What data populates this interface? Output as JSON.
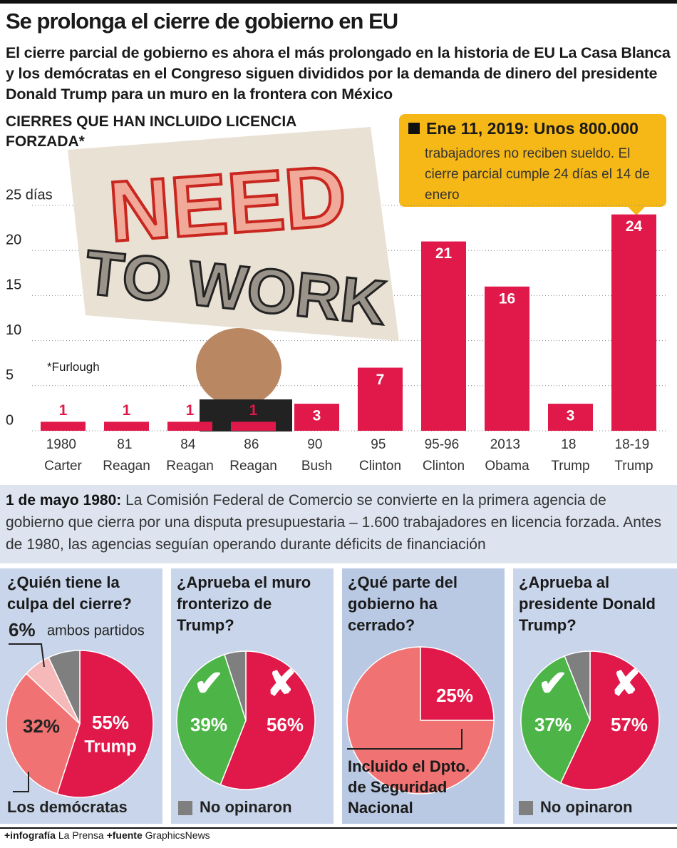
{
  "title": "Se prolonga el cierre de gobierno en EU",
  "subtitle": "El cierre parcial de gobierno es ahora el más prolongado en la historia de EU La Casa Blanca y los demócratas en el Congreso siguen divididos por la demanda de dinero del presidente Donald Trump para un muro en la frontera con México",
  "photo_sign": [
    "NEED",
    "TO WORK"
  ],
  "chart_data": [
    {
      "type": "bar",
      "title": "CIERRES QUE HAN INCLUIDO LICENCIA FORZADA*",
      "note": "*Furlough",
      "categories": [
        "1980 Carter",
        "81 Reagan",
        "84 Reagan",
        "86 Reagan",
        "90 Bush",
        "95 Clinton",
        "95-96 Clinton",
        "2013 Obama",
        "18 Trump",
        "18-19 Trump"
      ],
      "values": [
        1,
        1,
        1,
        1,
        3,
        7,
        21,
        16,
        3,
        24
      ],
      "color": "#e0194a",
      "ylim": [
        0,
        25
      ],
      "yticks": [
        0,
        5,
        10,
        15,
        20,
        {
          "value": 25,
          "label": "25 días"
        }
      ],
      "grid": true,
      "annotation": {
        "heading": "Ene 11, 2019: Unos 800.000",
        "text": "trabajadores no reciben sueldo. El cierre parcial cumple 24 días el 14 de enero"
      }
    },
    {
      "type": "pie",
      "title": "¿Quién tiene la culpa del cierre?",
      "categories": [
        "Trump",
        "Los demócratas",
        "ambos partidos",
        null
      ],
      "values": [
        55,
        32,
        6,
        7
      ],
      "value_labels": [
        "55%",
        "32%",
        "6%",
        null
      ],
      "colors": [
        "#e0194a",
        "#f07272",
        "#f6b9b9",
        "#7f7f7f"
      ]
    },
    {
      "type": "pie",
      "title": "¿Aprueba el muro fronterizo de Trump?",
      "categories": [
        "✘",
        "✔",
        "No opinaron"
      ],
      "values": [
        56,
        39,
        5
      ],
      "value_labels": [
        "56%",
        "39%",
        null
      ],
      "colors": [
        "#e0194a",
        "#4db548",
        "#7f7f7f"
      ]
    },
    {
      "type": "pie",
      "title": "¿Qué parte del gobierno ha cerrado?",
      "categories": [
        "Incluido el Dpto. de Seguridad Nacional",
        null
      ],
      "values": [
        25,
        75
      ],
      "value_labels": [
        "25%",
        null
      ],
      "colors": [
        "#e0194a",
        "#f07272"
      ]
    },
    {
      "type": "pie",
      "title": "¿Aprueba al presidente Donald Trump?",
      "categories": [
        "✘",
        "✔",
        "No opinaron"
      ],
      "values": [
        57,
        37,
        6
      ],
      "value_labels": [
        "57%",
        "37%",
        null
      ],
      "colors": [
        "#e0194a",
        "#4db548",
        "#7f7f7f"
      ]
    }
  ],
  "timeline": {
    "date": "1 de mayo 1980:",
    "text": "La Comisión Federal de Comercio se convierte en la primera agencia de gobierno que cierra por una disputa presupuestaria – 1.600 trabajadores en licencia forzada. Antes de 1980, las agencias seguían operando durante déficits de financiación"
  },
  "footer": {
    "infografia_label": "+infografía",
    "infografia": "La Prensa",
    "fuente_label": "+fuente",
    "fuente": "GraphicsNews"
  }
}
